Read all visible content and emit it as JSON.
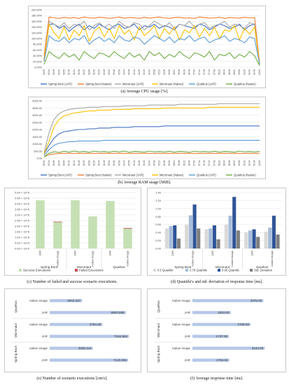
{
  "captions": {
    "a": "(a) Average CPU usage [%].",
    "b": "(b) Average RAM usage [MiB].",
    "c": "(c) Number of failed and success scenario executions.",
    "d": "(d) Quantile's and std. deviation of response time [ms].",
    "e": "(e) Number of scenario executions [cnt/s].",
    "f": "(f) Average response time [ms]."
  },
  "series_colors": {
    "Spring Boot (JAR)": "#4472c4",
    "Spring Boot (Native)": "#ed7d31",
    "Micronaut (JAR)": "#a5a5a5",
    "Micronaut (Native)": "#ffc000",
    "Quarkus (JAR)": "#5b9bd5",
    "Quarkus (Native)": "#70ad47"
  },
  "chart_data": [
    {
      "id": "a",
      "type": "line",
      "ylabel": "",
      "yticks": [
        "0.00%",
        "20.00%",
        "40.00%",
        "60.00%",
        "80.00%",
        "100.00%",
        "120.00%",
        "140.00%",
        "160.00%",
        "180.00%",
        "200.00%"
      ],
      "ylim": [
        0,
        200
      ],
      "x": [
        "00:00",
        "00:14",
        "00:28",
        "00:42",
        "00:56",
        "01:10",
        "01:24",
        "01:38",
        "01:52",
        "02:06",
        "02:20",
        "02:34",
        "02:48",
        "03:02",
        "03:16",
        "03:30",
        "03:44",
        "03:58",
        "04:12",
        "04:26",
        "04:40",
        "04:54",
        "05:08",
        "05:22",
        "05:36",
        "05:50",
        "06:04",
        "06:18",
        "06:32",
        "06:46",
        "07:00",
        "07:14",
        "07:28",
        "07:42",
        "07:56",
        "08:10",
        "08:24",
        "08:38",
        "08:52",
        "09:06",
        "09:20",
        "09:34",
        "09:48",
        "10:00"
      ],
      "series": [
        {
          "name": "Spring Boot (JAR)",
          "values": [
            30,
            150,
            150,
            135,
            145,
            125,
            140,
            150,
            130,
            145,
            135,
            150,
            140,
            130,
            145,
            150,
            135,
            140,
            150,
            130,
            145,
            140,
            150,
            135,
            145,
            140,
            130,
            150,
            145,
            140,
            135,
            150,
            145,
            130,
            140,
            150,
            145,
            135,
            140,
            150,
            130,
            145,
            150,
            10
          ]
        },
        {
          "name": "Spring Boot (Native)",
          "values": [
            40,
            175,
            172,
            170,
            174,
            171,
            173,
            170,
            175,
            172,
            171,
            174,
            173,
            170,
            172,
            175,
            171,
            173,
            172,
            170,
            174,
            171,
            173,
            175,
            172,
            170,
            173,
            174,
            171,
            172,
            170,
            175,
            173,
            171,
            172,
            174,
            170,
            173,
            172,
            171,
            174,
            172,
            173,
            15
          ]
        },
        {
          "name": "Micronaut (JAR)",
          "values": [
            20,
            160,
            150,
            140,
            155,
            135,
            150,
            145,
            160,
            130,
            145,
            155,
            140,
            150,
            135,
            160,
            145,
            140,
            155,
            150,
            130,
            145,
            160,
            150,
            140,
            155,
            135,
            150,
            145,
            160,
            140,
            150,
            155,
            135,
            145,
            150,
            160,
            140,
            150,
            145,
            135,
            155,
            150,
            10
          ]
        },
        {
          "name": "Micronaut (Native)",
          "values": [
            25,
            150,
            120,
            100,
            140,
            95,
            130,
            110,
            145,
            90,
            125,
            140,
            105,
            135,
            100,
            145,
            115,
            130,
            95,
            140,
            110,
            125,
            145,
            100,
            135,
            115,
            140,
            95,
            130,
            120,
            145,
            105,
            135,
            110,
            140,
            100,
            130,
            125,
            145,
            95,
            135,
            115,
            140,
            10
          ]
        },
        {
          "name": "Quarkus (JAR)",
          "values": [
            20,
            110,
            95,
            90,
            105,
            85,
            100,
            95,
            110,
            80,
            95,
            105,
            90,
            100,
            85,
            110,
            95,
            90,
            105,
            100,
            80,
            95,
            110,
            100,
            90,
            105,
            85,
            100,
            95,
            110,
            90,
            100,
            105,
            85,
            95,
            100,
            110,
            90,
            100,
            95,
            85,
            105,
            100,
            10
          ]
        },
        {
          "name": "Quarkus (Native)",
          "values": [
            10,
            55,
            40,
            30,
            50,
            35,
            45,
            25,
            55,
            40,
            30,
            50,
            45,
            35,
            55,
            40,
            30,
            50,
            35,
            45,
            25,
            55,
            40,
            50,
            30,
            45,
            35,
            55,
            40,
            30,
            50,
            45,
            35,
            55,
            25,
            45,
            40,
            50,
            30,
            45,
            35,
            55,
            40,
            5
          ]
        }
      ]
    },
    {
      "id": "b",
      "type": "line",
      "ylabel": "",
      "yticks": [
        "0.00",
        "500.00",
        "1000.00",
        "1500.00",
        "2000.00",
        "2500.00",
        "3000.00",
        "3500.00",
        "4000.00"
      ],
      "ylim": [
        0,
        4000
      ],
      "x": [
        "00:00",
        "00:14",
        "00:28",
        "00:42",
        "00:56",
        "01:10",
        "01:24",
        "01:38",
        "01:52",
        "02:06",
        "02:20",
        "02:34",
        "02:48",
        "03:02",
        "03:16",
        "03:30",
        "03:44",
        "03:58",
        "04:12",
        "04:26",
        "04:40",
        "04:54",
        "05:08",
        "05:22",
        "05:36",
        "05:50",
        "06:04",
        "06:18",
        "06:32",
        "06:46",
        "07:00",
        "07:14",
        "07:28",
        "07:42",
        "07:56",
        "08:10",
        "08:24",
        "08:38",
        "08:52",
        "09:06",
        "09:20",
        "09:34",
        "09:48",
        "10:00"
      ],
      "series": [
        {
          "name": "Spring Boot (JAR)",
          "values": [
            300,
            900,
            1400,
            1700,
            1850,
            1900,
            1950,
            2000,
            2000,
            2050,
            2050,
            2100,
            2100,
            2100,
            2150,
            2150,
            2150,
            2150,
            2200,
            2200,
            2200,
            2200,
            2200,
            2200,
            2250,
            2250,
            2250,
            2250,
            2250,
            2250,
            2250,
            2250,
            2250,
            2250,
            2250,
            2250,
            2250,
            2250,
            2250,
            2250,
            2250,
            2250,
            2250,
            2250
          ]
        },
        {
          "name": "Spring Boot (Native)",
          "values": [
            100,
            250,
            300,
            320,
            330,
            330,
            330,
            330,
            330,
            330,
            330,
            330,
            330,
            330,
            330,
            330,
            330,
            330,
            330,
            330,
            330,
            330,
            330,
            330,
            330,
            330,
            330,
            330,
            330,
            330,
            330,
            330,
            330,
            330,
            330,
            330,
            330,
            330,
            330,
            330,
            330,
            330,
            330,
            330
          ]
        },
        {
          "name": "Micronaut (JAR)",
          "values": [
            400,
            1800,
            2700,
            3100,
            3300,
            3400,
            3450,
            3500,
            3500,
            3550,
            3550,
            3550,
            3600,
            3600,
            3600,
            3600,
            3650,
            3650,
            3650,
            3650,
            3650,
            3700,
            3700,
            3700,
            3700,
            3700,
            3700,
            3750,
            3750,
            3750,
            3750,
            3750,
            3750,
            3750,
            3750,
            3800,
            3800,
            3800,
            3800,
            3800,
            3800,
            3800,
            3800,
            3800
          ]
        },
        {
          "name": "Micronaut (Native)",
          "values": [
            300,
            1200,
            2200,
            2700,
            2950,
            3050,
            3150,
            3200,
            3250,
            3300,
            3300,
            3350,
            3350,
            3350,
            3400,
            3400,
            3400,
            3400,
            3450,
            3450,
            3450,
            3450,
            3450,
            3450,
            3500,
            3500,
            3500,
            3500,
            3500,
            3500,
            3500,
            3500,
            3500,
            3550,
            3550,
            3550,
            3550,
            3550,
            3550,
            3550,
            3550,
            3550,
            3550,
            3550
          ]
        },
        {
          "name": "Quarkus (JAR)",
          "values": [
            200,
            600,
            900,
            1050,
            1100,
            1150,
            1150,
            1200,
            1200,
            1200,
            1200,
            1200,
            1250,
            1250,
            1250,
            1250,
            1250,
            1250,
            1250,
            1250,
            1250,
            1250,
            1250,
            1250,
            1250,
            1250,
            1250,
            1250,
            1250,
            1250,
            1250,
            1250,
            1250,
            1250,
            1250,
            1250,
            1250,
            1250,
            1250,
            1250,
            1250,
            1250,
            1250,
            1250
          ]
        },
        {
          "name": "Quarkus (Native)",
          "values": [
            100,
            350,
            450,
            400,
            480,
            420,
            500,
            430,
            470,
            410,
            490,
            440,
            460,
            420,
            480,
            430,
            500,
            410,
            470,
            450,
            420,
            490,
            440,
            460,
            430,
            480,
            420,
            470,
            450,
            410,
            490,
            440,
            460,
            430,
            480,
            420,
            470,
            450,
            420,
            490,
            440,
            460,
            430,
            470
          ]
        }
      ]
    },
    {
      "id": "c",
      "type": "bar",
      "stacked": true,
      "yticks": [
        "0.00 × 10^0",
        "5.00 × 10^4",
        "1.00 × 10^5",
        "1.50 × 10^5",
        "2.00 × 10^5",
        "2.50 × 10^5",
        "3.00 × 10^5",
        "3.50 × 10^5",
        "4.00 × 10^5",
        "4.50 × 10^5",
        "5.00 × 10^5"
      ],
      "ylim": [
        0,
        500000
      ],
      "categories": [
        "JAR",
        "native image",
        "JAR",
        "native image",
        "JAR",
        "native image"
      ],
      "groups": [
        "Spring Boot",
        "Micronaut",
        "Quarkus"
      ],
      "series": [
        {
          "name": "Success Executions",
          "values": [
            430000,
            235000,
            431000,
            287000,
            424000,
            177000
          ]
        },
        {
          "name": "Failed Executions",
          "values": [
            0,
            5000,
            0,
            0,
            0,
            6000
          ]
        }
      ]
    },
    {
      "id": "d",
      "type": "bar",
      "yticks": [
        "0.00",
        "0.20",
        "0.40",
        "0.60",
        "0.80",
        "1.00",
        "1.20",
        "1.40"
      ],
      "ylim": [
        0,
        1.4
      ],
      "categories": [
        "JAR",
        "native image",
        "JAR",
        "native image",
        "JAR",
        "native image"
      ],
      "groups": [
        "Spring Boot",
        "Micronaut",
        "Quarkus"
      ],
      "series": [
        {
          "name": "0.5 Quantile",
          "values": [
            0.5,
            0.6,
            0.48,
            0.6,
            0.4,
            0.42
          ]
        },
        {
          "name": "0.75 Quantile",
          "values": [
            0.56,
            0.83,
            0.5,
            0.82,
            0.45,
            0.52
          ]
        },
        {
          "name": "0.95 Quantile",
          "values": [
            0.58,
            1.1,
            0.58,
            1.29,
            0.48,
            0.82
          ]
        },
        {
          "name": "Std. Deviation",
          "values": [
            0.25,
            0.5,
            0.23,
            0.45,
            0.29,
            0.35
          ]
        }
      ]
    },
    {
      "id": "e",
      "type": "bar",
      "orientation": "horizontal",
      "groups": [
        "Spring Boot",
        "Micronaut",
        "Quarkus"
      ],
      "categories": [
        "JAR",
        "native image",
        "JAR",
        "native image",
        "JAR",
        "native image"
      ],
      "values": [
        7120.082,
        3908.116,
        7184.682,
        4784.29,
        6904.558,
        2942.347
      ],
      "labels": [
        "7120.082",
        "3908.116",
        "7184.682",
        "4784.29",
        "6904.558",
        "2942.347"
      ],
      "xlim": [
        0,
        8000
      ]
    },
    {
      "id": "f",
      "type": "bar",
      "orientation": "horizontal",
      "groups": [
        "Spring Boot",
        "Micronaut",
        "Quarkus"
      ],
      "categories": [
        "JAR",
        "native image",
        "JAR",
        "native image",
        "JAR",
        "native image"
      ],
      "values": [
        1754.0,
        3444.0,
        1737.0,
        2768.0,
        1822.0,
        3375.0
      ],
      "labels": [
        "1754.00",
        "3444.00",
        "1737.00",
        "2768.00",
        "1822.00",
        "3375.00"
      ],
      "xlim": [
        0,
        4200
      ]
    }
  ]
}
